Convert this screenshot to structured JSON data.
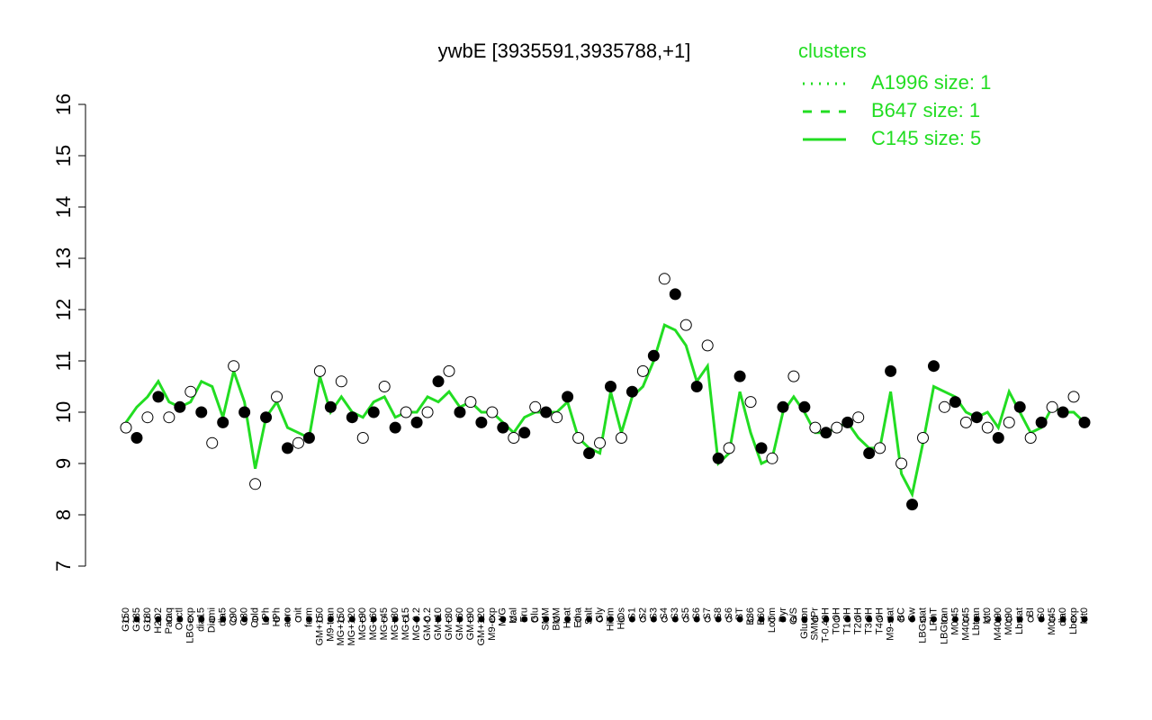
{
  "chart_data": {
    "type": "line",
    "title": "ywbE [3935591,3935788,+1]",
    "ylim": [
      7,
      16
    ],
    "yticks": [
      7,
      8,
      9,
      10,
      11,
      12,
      13,
      14,
      15,
      16
    ],
    "legend": {
      "title": "clusters",
      "position": "top-right",
      "entries": [
        {
          "label": "A1996 size: 1",
          "dash": "dotted"
        },
        {
          "label": "B647 size: 1",
          "dash": "dashed"
        },
        {
          "label": "C145 size: 5",
          "dash": "solid"
        }
      ]
    },
    "categories": [
      "G150",
      "G135",
      "G180",
      "H2O2",
      "Paraq",
      "Oxctl",
      "LBGexp",
      "dia15",
      "Diami",
      "dia5",
      "C90",
      "C30",
      "Cold",
      "LPh",
      "HPh",
      "aero",
      "nit",
      "ferm",
      "GM+150",
      "M9-tran",
      "MG+150",
      "MG+120",
      "MG+90",
      "MG+60",
      "MG+45",
      "MG+30",
      "MG+15",
      "MG-0.2",
      "GM-0.2",
      "GM+10",
      "GM+30",
      "GM+60",
      "GM+90",
      "GM+120",
      "M9-exp",
      "M/G",
      "Mal",
      "Fru",
      "Glu",
      "SMM",
      "BMM",
      "Heat",
      "Etha",
      "Salt",
      "Gly",
      "HiTm",
      "HiOs",
      "S1",
      "S2",
      "S3",
      "S4",
      "S3",
      "S5",
      "S6",
      "S7",
      "S8",
      "S6",
      "BT",
      "B36",
      "B60",
      "LoTm",
      "Pyr",
      "G/S",
      "Glucon",
      "SMMPr",
      "T-0.40H",
      "T0.0H",
      "T1.0H",
      "T2.0H",
      "T3.0H",
      "T4.0H",
      "M9-stat",
      "BC",
      "Sw",
      "LBGstat",
      "LPhT",
      "LBGtran",
      "M0t45",
      "M40t45",
      "Lbtran",
      "Mt0",
      "M40t90",
      "M0t90",
      "Lbstat",
      "BI",
      "S0",
      "M0t45",
      "dia0",
      "Lbexp",
      "Mt0"
    ],
    "points": {
      "values": [
        9.7,
        9.5,
        9.9,
        10.3,
        9.9,
        10.1,
        10.4,
        10.0,
        9.4,
        9.8,
        10.9,
        10.0,
        8.6,
        9.9,
        10.3,
        9.3,
        9.4,
        9.5,
        10.8,
        10.1,
        10.6,
        9.9,
        9.5,
        10.0,
        10.5,
        9.7,
        10.0,
        9.8,
        10.0,
        10.6,
        10.8,
        10.0,
        10.2,
        9.8,
        10.0,
        9.7,
        9.5,
        9.6,
        10.1,
        10.0,
        9.9,
        10.3,
        9.5,
        9.2,
        9.4,
        10.5,
        9.5,
        10.4,
        10.8,
        11.1,
        12.6,
        12.3,
        11.7,
        10.5,
        11.3,
        9.1,
        9.3,
        10.7,
        10.2,
        9.3,
        9.1,
        10.1,
        10.7,
        10.1,
        9.7,
        9.6,
        9.7,
        9.8,
        9.9,
        9.2,
        9.3,
        10.8,
        9.0,
        8.2,
        9.5,
        10.9,
        10.1,
        10.2,
        9.8,
        9.9,
        9.7,
        9.5,
        9.8,
        10.1,
        9.5,
        9.8,
        10.1,
        10.0,
        10.3,
        9.8
      ]
    },
    "series": [
      {
        "name": "C145 size: 5",
        "color": "#22dd22",
        "values": [
          9.8,
          10.1,
          10.3,
          10.6,
          10.2,
          10.1,
          10.2,
          10.6,
          10.5,
          9.9,
          10.8,
          10.2,
          8.9,
          9.9,
          10.2,
          9.7,
          9.6,
          9.5,
          10.7,
          10.0,
          10.3,
          10.0,
          9.9,
          10.2,
          10.3,
          9.9,
          10.0,
          10.0,
          10.3,
          10.2,
          10.4,
          10.1,
          10.2,
          10.0,
          10.0,
          9.8,
          9.6,
          9.9,
          10.0,
          10.0,
          10.0,
          10.2,
          9.5,
          9.3,
          9.2,
          10.4,
          9.6,
          10.3,
          10.5,
          11.0,
          11.7,
          11.6,
          11.3,
          10.6,
          10.9,
          9.0,
          9.2,
          10.4,
          9.6,
          9.0,
          9.1,
          10.0,
          10.3,
          10.0,
          9.6,
          9.6,
          9.7,
          9.8,
          9.5,
          9.3,
          9.3,
          10.4,
          8.8,
          8.4,
          9.4,
          10.5,
          10.4,
          10.3,
          10.0,
          9.9,
          10.0,
          9.7,
          10.4,
          10.0,
          9.6,
          9.7,
          10.1,
          10.0,
          10.0,
          9.8
        ]
      }
    ]
  }
}
